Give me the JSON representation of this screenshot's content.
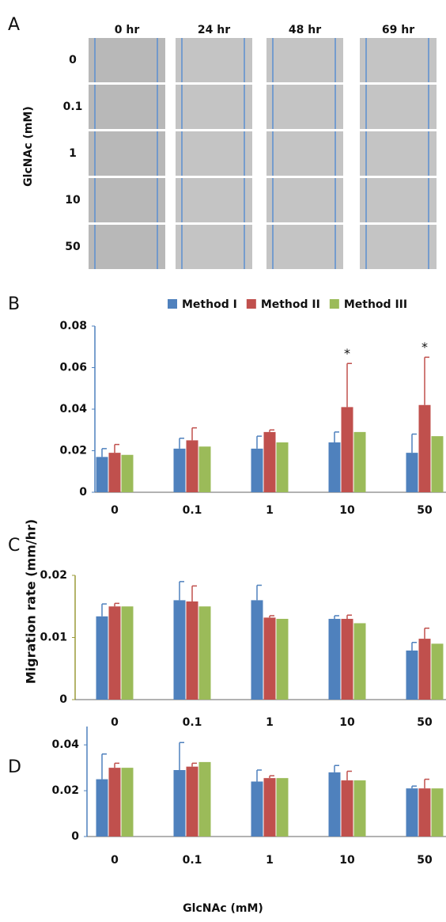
{
  "panel_a": {
    "panel": "A",
    "columns": [
      "0 hr",
      "24 hr",
      "48 hr",
      "69 hr"
    ],
    "rows": [
      "0",
      "0.1",
      "1",
      "10",
      "50"
    ],
    "ylabel": "GlcNAc (mM)"
  },
  "ylabel": "Migration rate (mm/hr)",
  "xlabel": "GlcNAc (mM)",
  "chart_data": [
    {
      "panel": "B",
      "type": "bar",
      "categories": [
        "0",
        "0.1",
        "1",
        "10",
        "50"
      ],
      "series": [
        {
          "name": "Method I",
          "color": "#4f81bd",
          "values": [
            0.017,
            0.021,
            0.021,
            0.024,
            0.019
          ],
          "errors": [
            0.004,
            0.005,
            0.006,
            0.005,
            0.009
          ]
        },
        {
          "name": "Method II",
          "color": "#c0504d",
          "values": [
            0.019,
            0.025,
            0.029,
            0.041,
            0.042
          ],
          "errors": [
            0.004,
            0.006,
            0.001,
            0.021,
            0.023
          ]
        },
        {
          "name": "Method III",
          "color": "#9bbb59",
          "values": [
            0.018,
            0.022,
            0.024,
            0.029,
            0.027
          ],
          "errors": [
            null,
            null,
            null,
            null,
            null
          ]
        }
      ],
      "ylim": [
        0,
        0.08
      ],
      "yticks": [
        0,
        0.02,
        0.04,
        0.06,
        0.08
      ],
      "legend": "top",
      "annotations": [
        {
          "text": "*",
          "category": 3,
          "series": 1
        },
        {
          "text": "*",
          "category": 4,
          "series": 1
        }
      ]
    },
    {
      "panel": "C",
      "type": "bar",
      "categories": [
        "0",
        "0.1",
        "1",
        "10",
        "50"
      ],
      "series": [
        {
          "name": "Method I",
          "color": "#4f81bd",
          "values": [
            0.0134,
            0.016,
            0.016,
            0.013,
            0.0079
          ],
          "errors": [
            0.002,
            0.003,
            0.0024,
            0.0005,
            0.0013
          ]
        },
        {
          "name": "Method II",
          "color": "#c0504d",
          "values": [
            0.015,
            0.0158,
            0.0132,
            0.013,
            0.0098
          ],
          "errors": [
            0.0005,
            0.0025,
            0.0003,
            0.0006,
            0.0017
          ]
        },
        {
          "name": "Method III",
          "color": "#9bbb59",
          "values": [
            0.015,
            0.015,
            0.013,
            0.0123,
            0.009
          ],
          "errors": [
            null,
            null,
            null,
            null,
            null
          ]
        }
      ],
      "ylim": [
        0,
        0.02
      ],
      "yticks": [
        0,
        0.01,
        0.02
      ]
    },
    {
      "panel": "D",
      "type": "bar",
      "categories": [
        "0",
        "0.1",
        "1",
        "10",
        "50"
      ],
      "series": [
        {
          "name": "Method I",
          "color": "#4f81bd",
          "values": [
            0.025,
            0.029,
            0.024,
            0.028,
            0.021
          ],
          "errors": [
            0.011,
            0.012,
            0.005,
            0.003,
            0.001
          ]
        },
        {
          "name": "Method II",
          "color": "#c0504d",
          "values": [
            0.03,
            0.0305,
            0.0255,
            0.0245,
            0.021
          ],
          "errors": [
            0.002,
            0.0015,
            0.001,
            0.004,
            0.004
          ]
        },
        {
          "name": "Method III",
          "color": "#9bbb59",
          "values": [
            0.03,
            0.0325,
            0.0255,
            0.0245,
            0.021
          ],
          "errors": [
            null,
            null,
            null,
            null,
            null
          ]
        }
      ],
      "ylim": [
        0,
        0.048
      ],
      "yticks": [
        0,
        0.02,
        0.04
      ]
    }
  ]
}
